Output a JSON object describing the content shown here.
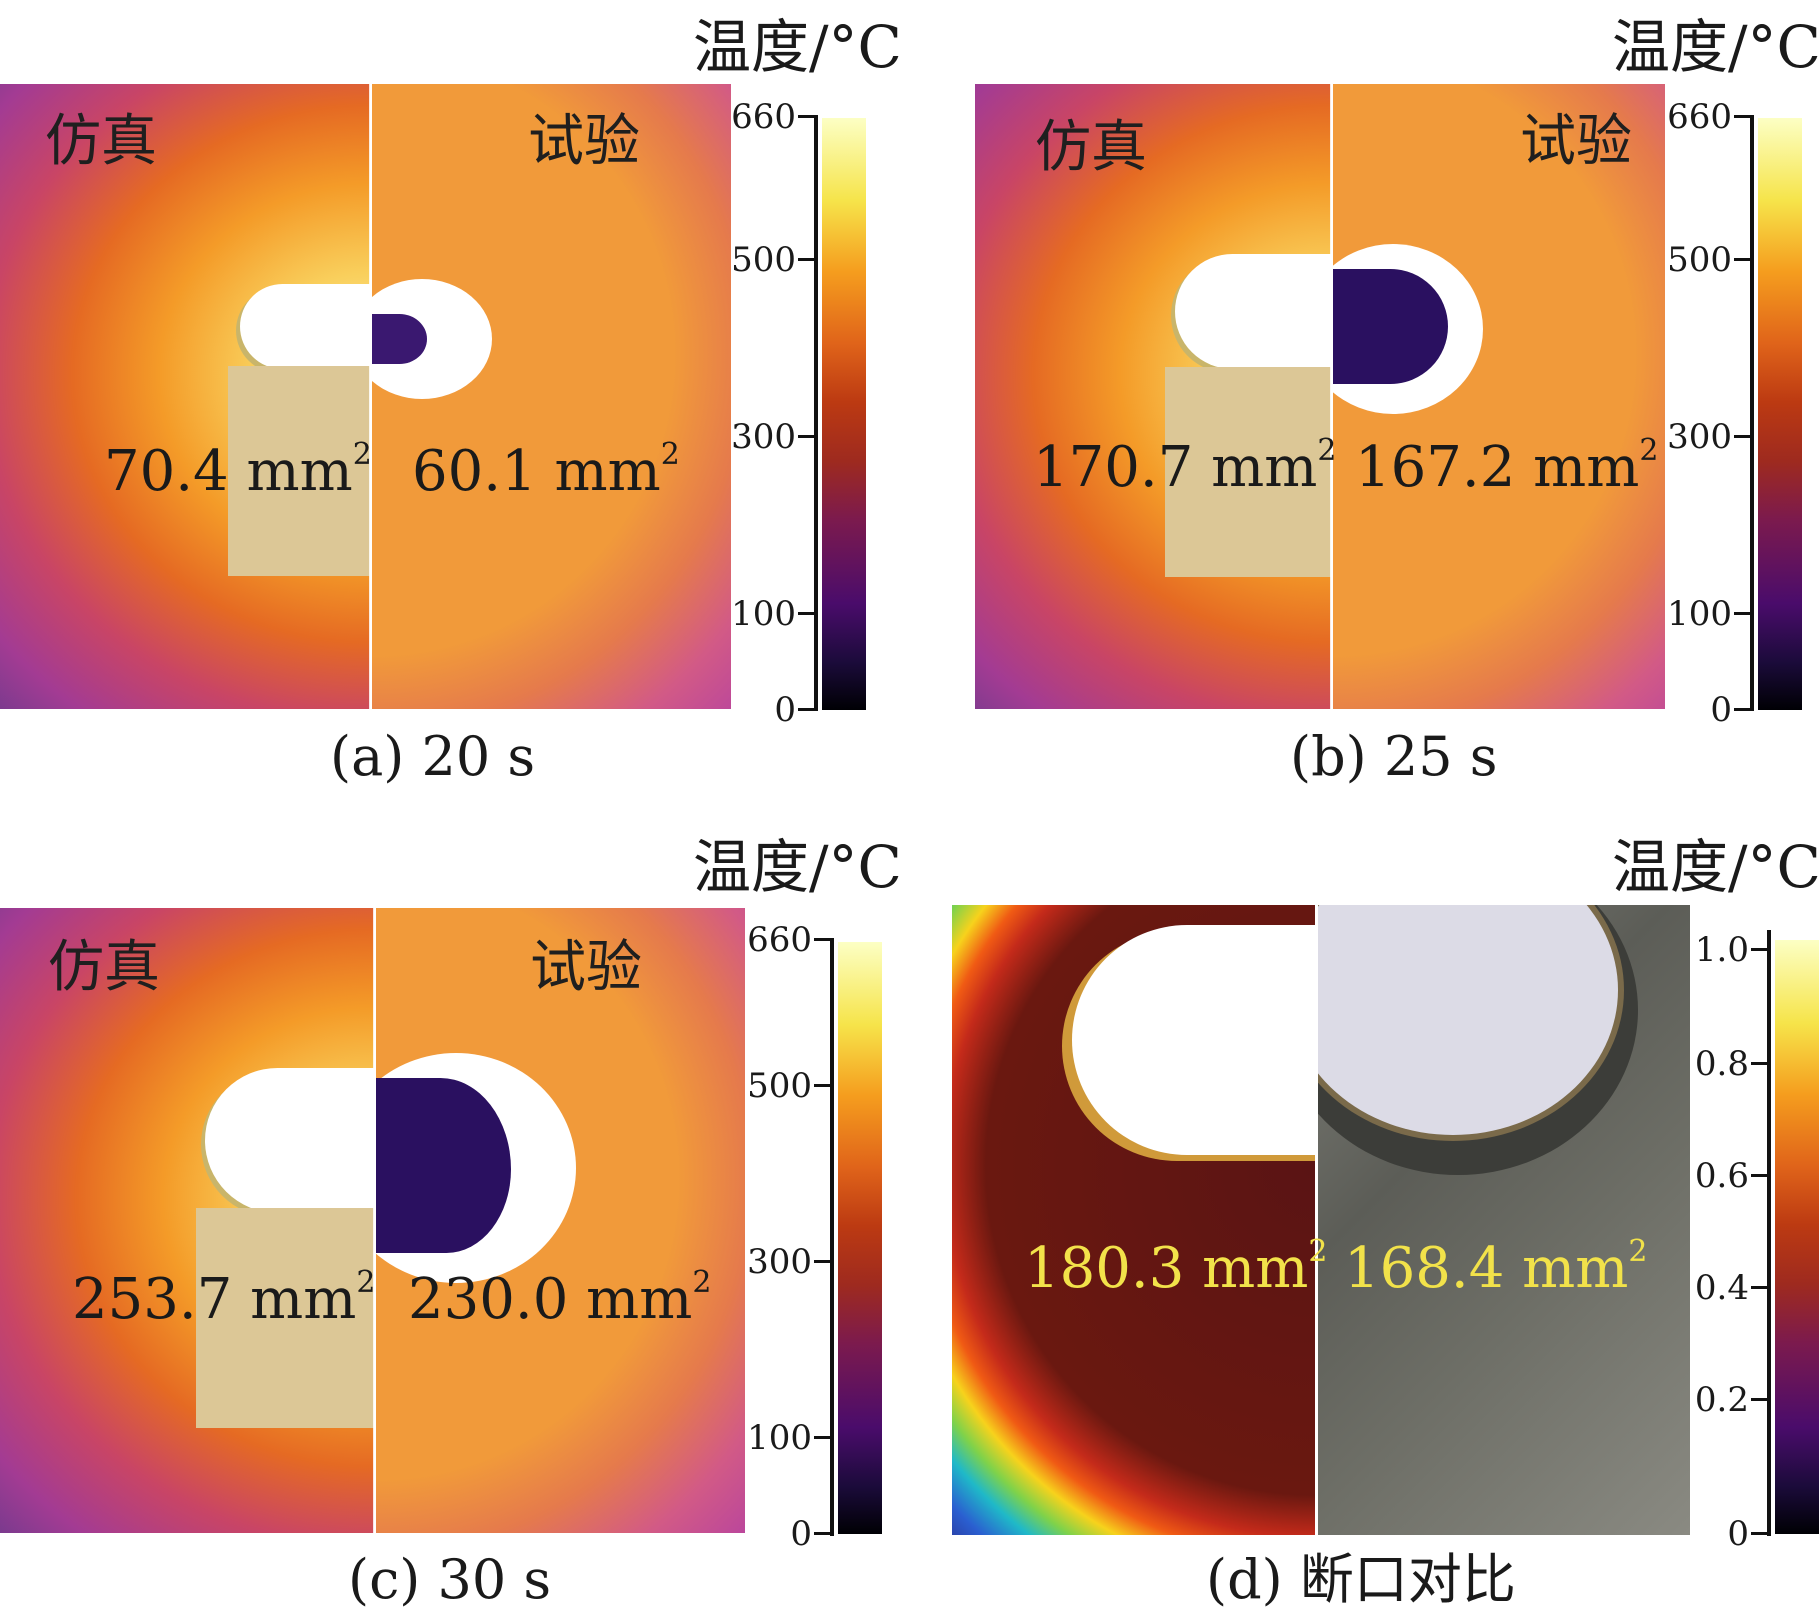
{
  "unit_label": "温度/°C",
  "label_sim": "仿真",
  "label_exp": "试验",
  "area_unit": "mm",
  "area_exp": "2",
  "panels": {
    "a": {
      "caption": "(a) 20 s",
      "sim_area": "70.4",
      "exp_area": "60.1",
      "ticks": [
        "660",
        "500",
        "300",
        "100",
        "0"
      ]
    },
    "b": {
      "caption": "(b) 25 s",
      "sim_area": "170.7",
      "exp_area": "167.2",
      "ticks": [
        "660",
        "500",
        "300",
        "100",
        "0"
      ]
    },
    "c": {
      "caption": "(c) 30 s",
      "sim_area": "253.7",
      "exp_area": "230.0",
      "ticks": [
        "660",
        "500",
        "300",
        "100",
        "0"
      ]
    },
    "d": {
      "caption": "(d) 断口对比",
      "sim_area": "180.3",
      "exp_area": "168.4",
      "ticks": [
        "1.0",
        "0.8",
        "0.6",
        "0.4",
        "0.2",
        "0"
      ]
    }
  },
  "colors": {
    "area_text_d": "#f2e24a",
    "area_text": "#1a1a1a"
  }
}
